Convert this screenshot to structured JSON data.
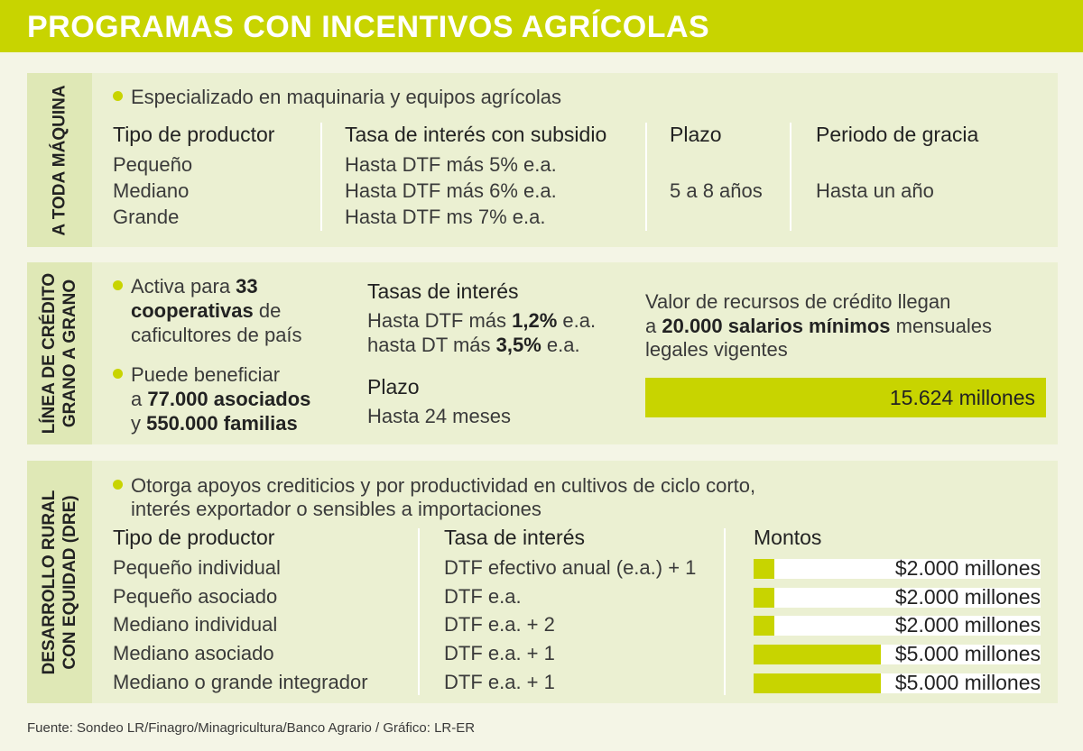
{
  "title": "PROGRAMAS CON INCENTIVOS AGRÍCOLAS",
  "section1": {
    "tab_label": "A TODA MÁQUINA",
    "bullet": "Especializado en maquinaria y equipos agrícolas",
    "headers": {
      "productor": "Tipo de productor",
      "tasa": "Tasa de interés con subsidio",
      "plazo": "Plazo",
      "gracia": "Periodo de gracia"
    },
    "rows": [
      {
        "productor": "Pequeño",
        "tasa": "Hasta DTF más 5% e.a."
      },
      {
        "productor": "Mediano",
        "tasa": "Hasta DTF más 6% e.a."
      },
      {
        "productor": "Grande",
        "tasa": "Hasta DTF ms 7% e.a."
      }
    ],
    "plazo": "5 a 8 años",
    "gracia": "Hasta un año"
  },
  "section2": {
    "tab_line1": "LÍNEA DE CRÉDITO",
    "tab_line2": "GRANO A GRANO",
    "bullet1": {
      "pre": "Activa para ",
      "num": "33",
      "bold2": "cooperativas",
      "post": " de",
      "line3": "caficultores de país"
    },
    "bullet2": {
      "line1": "Puede beneficiar",
      "pre2": "a ",
      "bold2": "77.000 asociados",
      "pre3": "y ",
      "bold3": "550.000 familias"
    },
    "tasas_title": "Tasas de interés",
    "tasa1": {
      "pre": "Hasta DTF más ",
      "bold": "1,2%",
      "post": " e.a."
    },
    "tasa2": {
      "pre": "hasta DT más ",
      "bold": "3,5%",
      "post": " e.a."
    },
    "plazo_title": "Plazo",
    "plazo_value": "Hasta 24 meses",
    "valor": {
      "line1": "Valor de recursos de crédito llegan",
      "pre2": "a ",
      "bold2": "20.000 salarios mínimos",
      "post2": " mensuales",
      "line3": "legales vigentes"
    },
    "total": "15.624 millones"
  },
  "section3": {
    "tab_line1": "DESARROLLO RURAL",
    "tab_line2": "CON EQUIDAD (DRE)",
    "bullet_line1": "Otorga apoyos crediticios y por productividad en cultivos de ciclo corto,",
    "bullet_line2": "interés exportador o sensibles a importaciones",
    "headers": {
      "productor": "Tipo de productor",
      "tasa": "Tasa de interés",
      "montos": "Montos"
    },
    "rows": [
      {
        "productor": "Pequeño individual",
        "tasa": "DTF efectivo anual (e.a.) + 1",
        "monto": "$2.000 millones",
        "value": 2000
      },
      {
        "productor": "Pequeño asociado",
        "tasa": "DTF e.a.",
        "monto": "$2.000 millones",
        "value": 2000
      },
      {
        "productor": "Mediano individual",
        "tasa": "DTF e.a. + 2",
        "monto": "$2.000 millones",
        "value": 2000
      },
      {
        "productor": "Mediano asociado",
        "tasa": "DTF e.a. + 1",
        "monto": "$5.000 millones",
        "value": 5000
      },
      {
        "productor": "Mediano o grande integrador",
        "tasa": "DTF e.a. + 1",
        "monto": "$5.000 millones",
        "value": 5000
      }
    ]
  },
  "source": "Fuente: Sondeo LR/Finagro/Minagricultura/Banco Agrario / Gráfico: LR-ER",
  "colors": {
    "accent": "#c8d400",
    "panel": "#ebf0d2",
    "tab": "#dfe8b6"
  }
}
